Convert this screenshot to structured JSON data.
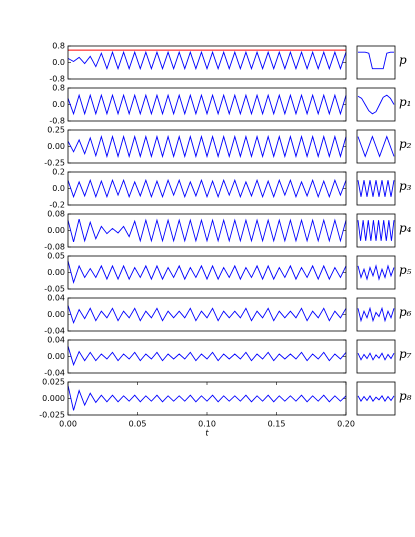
{
  "chart_data": [
    {
      "type": "line",
      "color": "#0000ff",
      "xlim": [
        0,
        0.2
      ],
      "ylim": [
        -0.8,
        0.8
      ],
      "yticks": [
        0.8,
        {
          "value": 0,
          "label": "0.0"
        },
        -0.8
      ],
      "hline": {
        "value": 0.6,
        "color": "#ff0000"
      },
      "x": [
        0,
        0.004,
        0.008,
        0.012,
        0.016,
        0.02,
        0.024,
        0.028,
        0.032,
        0.036,
        0.04,
        0.044,
        0.048,
        0.052,
        0.056,
        0.06,
        0.064,
        0.068,
        0.072,
        0.076,
        0.08,
        0.084,
        0.088,
        0.092,
        0.096,
        0.1,
        0.104,
        0.108,
        0.112,
        0.116,
        0.12,
        0.124,
        0.128,
        0.132,
        0.136,
        0.14,
        0.144,
        0.148,
        0.152,
        0.156,
        0.16,
        0.164,
        0.168,
        0.172,
        0.176,
        0.18,
        0.184,
        0.188,
        0.192,
        0.196,
        0.2
      ],
      "values": [
        0.2,
        0.05,
        0.25,
        -0.05,
        0.3,
        -0.2,
        0.45,
        -0.3,
        0.5,
        -0.3,
        0.5,
        -0.3,
        0.5,
        -0.3,
        0.5,
        -0.3,
        0.5,
        -0.3,
        0.5,
        -0.3,
        0.5,
        -0.3,
        0.5,
        -0.3,
        0.5,
        -0.3,
        0.5,
        -0.3,
        0.5,
        -0.3,
        0.5,
        -0.3,
        0.5,
        -0.3,
        0.5,
        -0.3,
        0.5,
        -0.3,
        0.5,
        -0.3,
        0.5,
        -0.3,
        0.5,
        -0.3,
        0.5,
        -0.3,
        0.5,
        -0.3,
        0.5,
        -0.3,
        0.5
      ],
      "inset": {
        "label": "p",
        "values": [
          0.5,
          0.5,
          0.5,
          0.45,
          -0.3,
          -0.3,
          -0.3,
          -0.3,
          0.45,
          0.5,
          0.5
        ]
      }
    },
    {
      "type": "line",
      "color": "#0000ff",
      "xlim": [
        0,
        0.2
      ],
      "ylim": [
        -0.8,
        0.8
      ],
      "yticks": [
        0.8,
        {
          "value": 0,
          "label": "0.0"
        },
        -0.8
      ],
      "x": [
        0,
        0.004,
        0.008,
        0.012,
        0.016,
        0.02,
        0.024,
        0.028,
        0.032,
        0.036,
        0.04,
        0.044,
        0.048,
        0.052,
        0.056,
        0.06,
        0.064,
        0.068,
        0.072,
        0.076,
        0.08,
        0.084,
        0.088,
        0.092,
        0.096,
        0.1,
        0.104,
        0.108,
        0.112,
        0.116,
        0.12,
        0.124,
        0.128,
        0.132,
        0.136,
        0.14,
        0.144,
        0.148,
        0.152,
        0.156,
        0.16,
        0.164,
        0.168,
        0.172,
        0.176,
        0.18,
        0.184,
        0.188,
        0.192,
        0.196,
        0.2
      ],
      "values": [
        0.3,
        -0.45,
        0.45,
        -0.45,
        0.45,
        -0.45,
        0.45,
        -0.45,
        0.45,
        -0.45,
        0.45,
        -0.45,
        0.45,
        -0.45,
        0.45,
        -0.45,
        0.45,
        -0.45,
        0.45,
        -0.45,
        0.45,
        -0.45,
        0.45,
        -0.45,
        0.45,
        -0.45,
        0.45,
        -0.45,
        0.45,
        -0.45,
        0.45,
        -0.45,
        0.45,
        -0.45,
        0.45,
        -0.45,
        0.45,
        -0.45,
        0.45,
        -0.45,
        0.45,
        -0.45,
        0.45,
        -0.45,
        0.45,
        -0.45,
        0.45,
        -0.45,
        0.45,
        -0.45,
        0.45
      ],
      "inset": {
        "label": "p₁",
        "values": [
          0.4,
          0.3,
          0,
          -0.3,
          -0.45,
          -0.35,
          0,
          0.35,
          0.45,
          0.3,
          0
        ]
      }
    },
    {
      "type": "line",
      "color": "#0000ff",
      "xlim": [
        0,
        0.2
      ],
      "ylim": [
        -0.25,
        0.25
      ],
      "yticks": [
        0.25,
        {
          "value": 0,
          "label": "0.00"
        },
        -0.25
      ],
      "x": [
        0,
        0.004,
        0.008,
        0.012,
        0.016,
        0.02,
        0.024,
        0.028,
        0.032,
        0.036,
        0.04,
        0.044,
        0.048,
        0.052,
        0.056,
        0.06,
        0.064,
        0.068,
        0.072,
        0.076,
        0.08,
        0.084,
        0.088,
        0.092,
        0.096,
        0.1,
        0.104,
        0.108,
        0.112,
        0.116,
        0.12,
        0.124,
        0.128,
        0.132,
        0.136,
        0.14,
        0.144,
        0.148,
        0.152,
        0.156,
        0.16,
        0.164,
        0.168,
        0.172,
        0.176,
        0.18,
        0.184,
        0.188,
        0.192,
        0.196,
        0.2
      ],
      "values": [
        0.08,
        -0.08,
        0.1,
        -0.11,
        0.13,
        -0.14,
        0.15,
        -0.15,
        0.15,
        -0.15,
        0.15,
        -0.15,
        0.15,
        -0.15,
        0.15,
        -0.15,
        0.15,
        -0.15,
        0.15,
        -0.15,
        0.15,
        -0.15,
        0.15,
        -0.15,
        0.15,
        -0.15,
        0.15,
        -0.15,
        0.15,
        -0.15,
        0.15,
        -0.15,
        0.15,
        -0.15,
        0.15,
        -0.15,
        0.15,
        -0.15,
        0.15,
        -0.15,
        0.15,
        -0.15,
        0.15,
        -0.15,
        0.15,
        -0.15,
        0.15,
        -0.15,
        0.15,
        -0.15,
        0.15
      ],
      "inset": {
        "label": "p₂",
        "values": [
          0.15,
          0,
          -0.15,
          0,
          0.15,
          0,
          -0.15,
          0,
          0.15,
          0,
          -0.15
        ]
      }
    },
    {
      "type": "line",
      "color": "#0000ff",
      "xlim": [
        0,
        0.2
      ],
      "ylim": [
        -0.2,
        0.2
      ],
      "yticks": [
        0.2,
        {
          "value": 0,
          "label": "0.0"
        },
        -0.2
      ],
      "x": [
        0,
        0.004,
        0.008,
        0.012,
        0.016,
        0.02,
        0.024,
        0.028,
        0.032,
        0.036,
        0.04,
        0.044,
        0.048,
        0.052,
        0.056,
        0.06,
        0.064,
        0.068,
        0.072,
        0.076,
        0.08,
        0.084,
        0.088,
        0.092,
        0.096,
        0.1,
        0.104,
        0.108,
        0.112,
        0.116,
        0.12,
        0.124,
        0.128,
        0.132,
        0.136,
        0.14,
        0.144,
        0.148,
        0.152,
        0.156,
        0.16,
        0.164,
        0.168,
        0.172,
        0.176,
        0.18,
        0.184,
        0.188,
        0.192,
        0.196,
        0.2
      ],
      "values": [
        0.1,
        -0.1,
        0.08,
        -0.09,
        0.1,
        -0.1,
        0.09,
        -0.1,
        0.1,
        -0.08,
        0.1,
        -0.1,
        0.08,
        -0.09,
        0.1,
        -0.1,
        0.09,
        -0.1,
        0.1,
        -0.08,
        0.1,
        -0.1,
        0.08,
        -0.09,
        0.1,
        -0.1,
        0.09,
        -0.1,
        0.1,
        -0.08,
        0.1,
        -0.1,
        0.08,
        -0.09,
        0.1,
        -0.1,
        0.09,
        -0.1,
        0.1,
        -0.08,
        0.1,
        -0.1,
        0.08,
        -0.09,
        0.1,
        -0.1,
        0.09,
        -0.1,
        0.1,
        -0.08,
        0.1
      ],
      "inset": {
        "label": "p₃",
        "values": [
          0.1,
          -0.1,
          0.1,
          -0.1,
          0.1,
          -0.1,
          0.1,
          -0.1,
          0.1,
          -0.1,
          0.1,
          -0.1,
          0.1
        ]
      }
    },
    {
      "type": "line",
      "color": "#0000ff",
      "xlim": [
        0,
        0.2
      ],
      "ylim": [
        -0.08,
        0.08
      ],
      "yticks": [
        0.08,
        {
          "value": 0,
          "label": "0.00"
        },
        -0.08
      ],
      "x": [
        0,
        0.004,
        0.008,
        0.012,
        0.016,
        0.02,
        0.024,
        0.028,
        0.032,
        0.036,
        0.04,
        0.044,
        0.048,
        0.052,
        0.056,
        0.06,
        0.064,
        0.068,
        0.072,
        0.076,
        0.08,
        0.084,
        0.088,
        0.092,
        0.096,
        0.1,
        0.104,
        0.108,
        0.112,
        0.116,
        0.12,
        0.124,
        0.128,
        0.132,
        0.136,
        0.14,
        0.144,
        0.148,
        0.152,
        0.156,
        0.16,
        0.164,
        0.168,
        0.172,
        0.176,
        0.18,
        0.184,
        0.188,
        0.192,
        0.196,
        0.2
      ],
      "values": [
        0.05,
        -0.055,
        0.055,
        -0.05,
        0.04,
        -0.04,
        0.02,
        -0.015,
        0.01,
        -0.012,
        0.02,
        -0.03,
        0.045,
        -0.05,
        0.05,
        -0.05,
        0.05,
        -0.05,
        0.05,
        -0.05,
        0.05,
        -0.05,
        0.05,
        -0.05,
        0.05,
        -0.05,
        0.05,
        -0.05,
        0.05,
        -0.05,
        0.05,
        -0.05,
        0.05,
        -0.05,
        0.05,
        -0.05,
        0.05,
        -0.05,
        0.05,
        -0.05,
        0.05,
        -0.05,
        0.05,
        -0.05,
        0.05,
        -0.05,
        0.05,
        -0.05,
        0.05,
        -0.05,
        0.05
      ],
      "inset": {
        "label": "p₄",
        "values": [
          0.05,
          -0.05,
          0.05,
          -0.05,
          0.05,
          -0.05,
          0.05,
          -0.05,
          0.05,
          -0.05,
          0.05,
          -0.05,
          0.05,
          -0.05,
          0.05
        ]
      }
    },
    {
      "type": "line",
      "color": "#0000ff",
      "xlim": [
        0,
        0.2
      ],
      "ylim": [
        -0.05,
        0.05
      ],
      "yticks": [
        0.05,
        {
          "value": 0,
          "label": "0.00"
        },
        -0.05
      ],
      "x": [
        0,
        0.004,
        0.008,
        0.012,
        0.016,
        0.02,
        0.024,
        0.028,
        0.032,
        0.036,
        0.04,
        0.044,
        0.048,
        0.052,
        0.056,
        0.06,
        0.064,
        0.068,
        0.072,
        0.076,
        0.08,
        0.084,
        0.088,
        0.092,
        0.096,
        0.1,
        0.104,
        0.108,
        0.112,
        0.116,
        0.12,
        0.124,
        0.128,
        0.132,
        0.136,
        0.14,
        0.144,
        0.148,
        0.152,
        0.156,
        0.16,
        0.164,
        0.168,
        0.172,
        0.176,
        0.18,
        0.184,
        0.188,
        0.192,
        0.196,
        0.2
      ],
      "values": [
        0.035,
        -0.03,
        0.02,
        -0.015,
        0.012,
        -0.015,
        0.02,
        -0.02,
        0.02,
        -0.02,
        0.02,
        -0.02,
        0.015,
        -0.015,
        0.02,
        -0.02,
        0.02,
        -0.02,
        0.015,
        -0.015,
        0.02,
        -0.02,
        0.015,
        -0.015,
        0.02,
        -0.02,
        0.02,
        -0.02,
        0.015,
        -0.015,
        0.02,
        -0.02,
        0.015,
        -0.015,
        0.02,
        -0.02,
        0.02,
        -0.02,
        0.015,
        -0.015,
        0.02,
        -0.02,
        0.015,
        -0.015,
        0.02,
        -0.02,
        0.02,
        -0.02,
        0.015,
        -0.015,
        0.02
      ],
      "inset": {
        "label": "p₅",
        "values": [
          0.02,
          -0.015,
          0.01,
          -0.02,
          0.015,
          -0.01,
          0.02,
          -0.02,
          0.01,
          -0.015,
          0.02,
          -0.01,
          0.015
        ]
      }
    },
    {
      "type": "line",
      "color": "#0000ff",
      "xlim": [
        0,
        0.2
      ],
      "ylim": [
        -0.04,
        0.04
      ],
      "yticks": [
        0.04,
        {
          "value": 0,
          "label": "0.00"
        },
        -0.04
      ],
      "x": [
        0,
        0.004,
        0.008,
        0.012,
        0.016,
        0.02,
        0.024,
        0.028,
        0.032,
        0.036,
        0.04,
        0.044,
        0.048,
        0.052,
        0.056,
        0.06,
        0.064,
        0.068,
        0.072,
        0.076,
        0.08,
        0.084,
        0.088,
        0.092,
        0.096,
        0.1,
        0.104,
        0.108,
        0.112,
        0.116,
        0.12,
        0.124,
        0.128,
        0.132,
        0.136,
        0.14,
        0.144,
        0.148,
        0.152,
        0.156,
        0.16,
        0.164,
        0.168,
        0.172,
        0.176,
        0.18,
        0.184,
        0.188,
        0.192,
        0.196,
        0.2
      ],
      "values": [
        0.022,
        -0.02,
        0.012,
        -0.01,
        0.015,
        -0.015,
        0.008,
        -0.008,
        0.015,
        -0.015,
        0.008,
        -0.008,
        0.015,
        -0.015,
        0.008,
        -0.008,
        0.015,
        -0.015,
        0.008,
        -0.008,
        0.008,
        -0.008,
        0.015,
        -0.015,
        0.008,
        -0.008,
        0.015,
        -0.015,
        0.008,
        -0.008,
        0.008,
        -0.008,
        0.015,
        -0.015,
        0.008,
        -0.008,
        0.015,
        -0.015,
        0.008,
        -0.008,
        0.008,
        -0.008,
        0.015,
        -0.015,
        0.008,
        -0.008,
        0.015,
        -0.015,
        0.008,
        -0.008,
        0.015
      ],
      "inset": {
        "label": "p₆",
        "values": [
          0.015,
          -0.015,
          0.008,
          -0.008,
          0.015,
          -0.015,
          0.005,
          -0.005,
          0.015,
          -0.015,
          0.008,
          -0.008,
          0.015
        ]
      }
    },
    {
      "type": "line",
      "color": "#0000ff",
      "xlim": [
        0,
        0.2
      ],
      "ylim": [
        -0.04,
        0.04
      ],
      "yticks": [
        0.04,
        {
          "value": 0,
          "label": "0.00"
        },
        -0.04
      ],
      "x": [
        0,
        0.004,
        0.008,
        0.012,
        0.016,
        0.02,
        0.024,
        0.028,
        0.032,
        0.036,
        0.04,
        0.044,
        0.048,
        0.052,
        0.056,
        0.06,
        0.064,
        0.068,
        0.072,
        0.076,
        0.08,
        0.084,
        0.088,
        0.092,
        0.096,
        0.1,
        0.104,
        0.108,
        0.112,
        0.116,
        0.12,
        0.124,
        0.128,
        0.132,
        0.136,
        0.14,
        0.144,
        0.148,
        0.152,
        0.156,
        0.16,
        0.164,
        0.168,
        0.172,
        0.176,
        0.18,
        0.184,
        0.188,
        0.192,
        0.196,
        0.2
      ],
      "values": [
        0.025,
        -0.02,
        0.012,
        -0.01,
        0.01,
        -0.01,
        0.006,
        -0.006,
        0.01,
        -0.01,
        0.006,
        -0.006,
        0.01,
        -0.01,
        0.006,
        -0.006,
        0.01,
        -0.01,
        0.006,
        -0.006,
        0.006,
        -0.006,
        0.01,
        -0.01,
        0.006,
        -0.006,
        0.01,
        -0.01,
        0.006,
        -0.006,
        0.006,
        -0.006,
        0.01,
        -0.01,
        0.006,
        -0.006,
        0.01,
        -0.01,
        0.006,
        -0.006,
        0.006,
        -0.006,
        0.01,
        -0.01,
        0.006,
        -0.006,
        0.01,
        -0.01,
        0.006,
        -0.006,
        0.01
      ],
      "inset": {
        "label": "p₇",
        "values": [
          0.008,
          -0.008,
          0.005,
          -0.005,
          0.008,
          -0.008,
          0.004,
          -0.004,
          0.008,
          -0.008,
          0.005,
          -0.005,
          0.008
        ]
      }
    },
    {
      "type": "line",
      "color": "#0000ff",
      "xlim": [
        0,
        0.2
      ],
      "ylim": [
        -0.025,
        0.025
      ],
      "yticks": [
        0.025,
        {
          "value": 0,
          "label": "0.000"
        },
        -0.025
      ],
      "xticks": [
        {
          "value": 0,
          "label": "0.00"
        },
        0.05,
        {
          "value": 0.1,
          "label": "0.10"
        },
        0.15,
        {
          "value": 0.2,
          "label": "0.20"
        }
      ],
      "xlabel": "t",
      "x": [
        0,
        0.004,
        0.008,
        0.012,
        0.016,
        0.02,
        0.024,
        0.028,
        0.032,
        0.036,
        0.04,
        0.044,
        0.048,
        0.052,
        0.056,
        0.06,
        0.064,
        0.068,
        0.072,
        0.076,
        0.08,
        0.084,
        0.088,
        0.092,
        0.096,
        0.1,
        0.104,
        0.108,
        0.112,
        0.116,
        0.12,
        0.124,
        0.128,
        0.132,
        0.136,
        0.14,
        0.144,
        0.148,
        0.152,
        0.156,
        0.16,
        0.164,
        0.168,
        0.172,
        0.176,
        0.18,
        0.184,
        0.188,
        0.192,
        0.196,
        0.2
      ],
      "values": [
        0.02,
        -0.018,
        0.012,
        -0.01,
        0.008,
        -0.006,
        0.005,
        -0.005,
        0.005,
        -0.005,
        0.004,
        -0.004,
        0.005,
        -0.005,
        0.004,
        -0.004,
        0.005,
        -0.005,
        0.004,
        -0.004,
        0.004,
        -0.004,
        0.005,
        -0.005,
        0.004,
        -0.004,
        0.005,
        -0.005,
        0.004,
        -0.004,
        0.004,
        -0.004,
        0.005,
        -0.005,
        0.004,
        -0.004,
        0.005,
        -0.005,
        0.004,
        -0.004,
        0.004,
        -0.004,
        0.005,
        -0.005,
        0.004,
        -0.004,
        0.005,
        -0.005,
        0.004,
        -0.004,
        0.004
      ],
      "inset": {
        "label": "p₈",
        "values": [
          0.004,
          -0.004,
          0.003,
          -0.003,
          0.004,
          -0.004,
          0.002,
          -0.002,
          0.004,
          -0.004,
          0.003,
          -0.003,
          0.004
        ]
      }
    }
  ]
}
